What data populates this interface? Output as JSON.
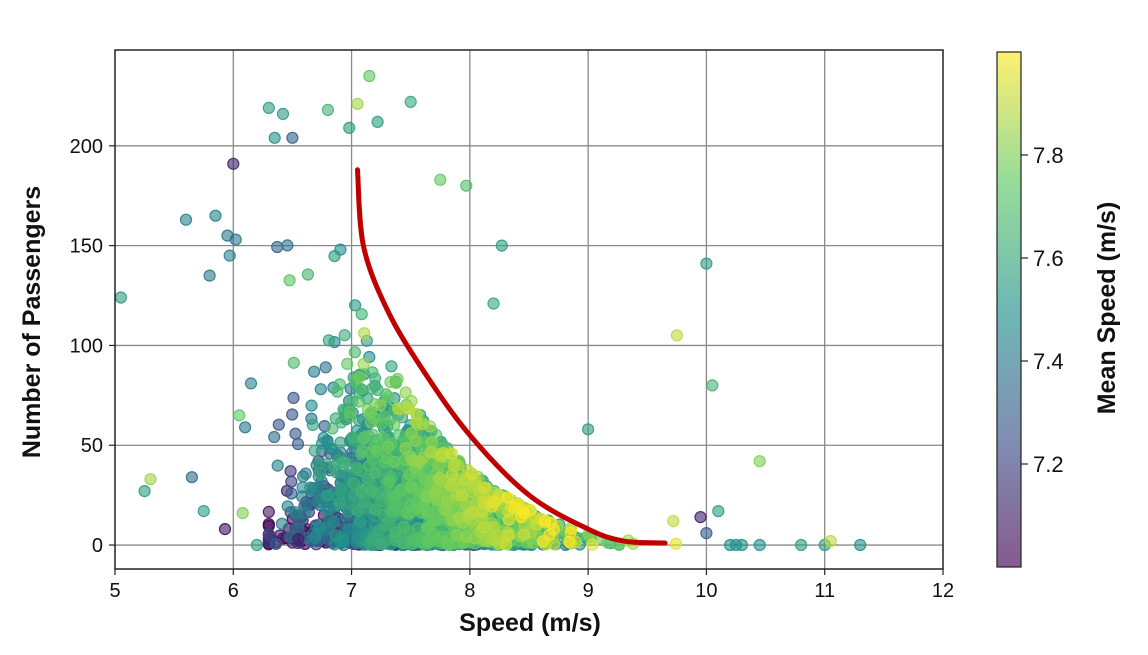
{
  "chart_data": {
    "type": "scatter",
    "title": "",
    "xlabel": "Speed (m/s)",
    "ylabel": "Number of Passengers",
    "xlim": [
      5,
      12
    ],
    "ylim": [
      -12,
      248
    ],
    "x_ticks": [
      "5",
      "6",
      "7",
      "8",
      "9",
      "10",
      "11",
      "12"
    ],
    "y_ticks": [
      "0",
      "50",
      "100",
      "150",
      "200"
    ],
    "grid": true,
    "marker_alpha": 0.6,
    "colorbar": {
      "label": "Mean Speed (m/s)",
      "range": [
        7.0,
        8.0
      ],
      "ticks": [
        "7.2",
        "7.4",
        "7.6",
        "7.8"
      ],
      "colormap": "viridis",
      "colors": [
        "#440154",
        "#3b528b",
        "#21918c",
        "#5ec962",
        "#fde725"
      ]
    },
    "trend_curve": {
      "color": "#c00000",
      "points": [
        [
          7.05,
          188
        ],
        [
          7.1,
          150
        ],
        [
          7.3,
          118
        ],
        [
          7.6,
          88
        ],
        [
          8.0,
          55
        ],
        [
          8.5,
          25
        ],
        [
          9.0,
          8
        ],
        [
          9.3,
          2
        ],
        [
          9.65,
          1
        ]
      ]
    },
    "highlight_points": [
      {
        "x": 5.05,
        "y": 124,
        "c": 7.55
      },
      {
        "x": 5.25,
        "y": 27,
        "c": 7.55
      },
      {
        "x": 5.3,
        "y": 33,
        "c": 7.85
      },
      {
        "x": 5.6,
        "y": 163,
        "c": 7.45
      },
      {
        "x": 5.65,
        "y": 34,
        "c": 7.35
      },
      {
        "x": 5.75,
        "y": 17,
        "c": 7.55
      },
      {
        "x": 5.8,
        "y": 135,
        "c": 7.4
      },
      {
        "x": 5.85,
        "y": 165,
        "c": 7.45
      },
      {
        "x": 5.93,
        "y": 8,
        "c": 7.05
      },
      {
        "x": 5.95,
        "y": 155,
        "c": 7.4
      },
      {
        "x": 5.97,
        "y": 145,
        "c": 7.45
      },
      {
        "x": 6.0,
        "y": 191,
        "c": 7.1
      },
      {
        "x": 6.02,
        "y": 153,
        "c": 7.4
      },
      {
        "x": 6.05,
        "y": 65,
        "c": 7.75
      },
      {
        "x": 6.08,
        "y": 16,
        "c": 7.8
      },
      {
        "x": 6.1,
        "y": 59,
        "c": 7.4
      },
      {
        "x": 6.15,
        "y": 81,
        "c": 7.45
      },
      {
        "x": 6.2,
        "y": 0,
        "c": 7.55
      },
      {
        "x": 6.3,
        "y": 219,
        "c": 7.55
      },
      {
        "x": 6.35,
        "y": 204,
        "c": 7.5
      },
      {
        "x": 6.42,
        "y": 216,
        "c": 7.55
      },
      {
        "x": 6.5,
        "y": 204,
        "c": 7.3
      },
      {
        "x": 6.55,
        "y": 3,
        "c": 7.1
      },
      {
        "x": 6.8,
        "y": 218,
        "c": 7.65
      },
      {
        "x": 6.98,
        "y": 209,
        "c": 7.55
      },
      {
        "x": 7.05,
        "y": 221,
        "c": 7.85
      },
      {
        "x": 7.15,
        "y": 235,
        "c": 7.75
      },
      {
        "x": 7.22,
        "y": 212,
        "c": 7.55
      },
      {
        "x": 7.5,
        "y": 222,
        "c": 7.6
      },
      {
        "x": 7.75,
        "y": 183,
        "c": 7.75
      },
      {
        "x": 7.97,
        "y": 180,
        "c": 7.7
      },
      {
        "x": 8.2,
        "y": 121,
        "c": 7.6
      },
      {
        "x": 8.27,
        "y": 150,
        "c": 7.55
      },
      {
        "x": 9.0,
        "y": 58,
        "c": 7.55
      },
      {
        "x": 9.75,
        "y": 105,
        "c": 7.9
      },
      {
        "x": 9.72,
        "y": 12,
        "c": 7.9
      },
      {
        "x": 9.95,
        "y": 14,
        "c": 7.1
      },
      {
        "x": 10.0,
        "y": 141,
        "c": 7.55
      },
      {
        "x": 10.05,
        "y": 80,
        "c": 7.65
      },
      {
        "x": 10.1,
        "y": 17,
        "c": 7.55
      },
      {
        "x": 10.0,
        "y": 6,
        "c": 7.3
      },
      {
        "x": 10.45,
        "y": 42,
        "c": 7.8
      },
      {
        "x": 10.2,
        "y": 0,
        "c": 7.5
      },
      {
        "x": 10.25,
        "y": 0,
        "c": 7.5
      },
      {
        "x": 10.3,
        "y": 0,
        "c": 7.5
      },
      {
        "x": 10.45,
        "y": 0,
        "c": 7.5
      },
      {
        "x": 10.8,
        "y": 0,
        "c": 7.55
      },
      {
        "x": 11.0,
        "y": 0,
        "c": 7.55
      },
      {
        "x": 11.05,
        "y": 2,
        "c": 7.9
      },
      {
        "x": 11.3,
        "y": 0,
        "c": 7.5
      }
    ],
    "dense_cloud": {
      "count": 2600,
      "speed_mean": 7.35,
      "speed_sd": 0.45,
      "passenger_mean": 25,
      "passenger_decay": 30,
      "mean_speed_range": [
        7.0,
        8.0
      ],
      "seed": 12345
    }
  }
}
